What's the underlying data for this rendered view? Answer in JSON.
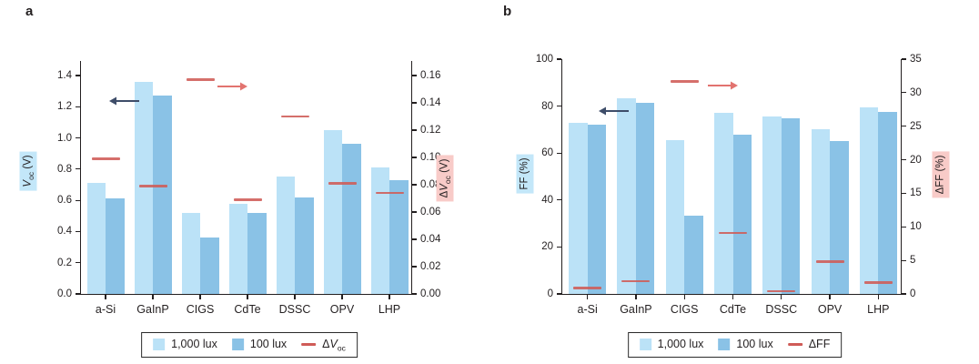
{
  "chart_data": [
    {
      "type": "bar",
      "panel_label": "a",
      "categories": [
        "a-Si",
        "GaInP",
        "CIGS",
        "CdTe",
        "DSSC",
        "OPV",
        "LHP"
      ],
      "series": [
        {
          "name": "1,000 lux",
          "color": "#bbe2f7",
          "axis": "left",
          "values": [
            0.71,
            1.36,
            0.52,
            0.58,
            0.75,
            1.05,
            0.81
          ]
        },
        {
          "name": "100 lux",
          "color": "#8ac2e6",
          "axis": "left",
          "values": [
            0.61,
            1.27,
            0.36,
            0.52,
            0.62,
            0.96,
            0.73
          ]
        }
      ],
      "delta_series": {
        "label": "ΔVoc",
        "label_parts": {
          "prefix": "Δ",
          "symbol": "V",
          "sub": "oc"
        },
        "color": "#cf5b57",
        "axis": "right",
        "values": [
          0.099,
          0.079,
          0.157,
          0.069,
          0.13,
          0.081,
          0.074
        ]
      },
      "left_axis": {
        "label": "Voc (V)",
        "label_parts": {
          "symbol": "V",
          "sub": "oc",
          "unit": " (V)"
        },
        "tick_labels": [
          "0.0",
          "0.2",
          "0.4",
          "0.6",
          "0.8",
          "1.0",
          "1.2",
          "1.4"
        ],
        "range": [
          0,
          1.4
        ],
        "highlight_color": "#c3e7f9"
      },
      "right_axis": {
        "label": "ΔVoc (V)",
        "label_parts": {
          "prefix": "Δ",
          "symbol": "V",
          "sub": "oc",
          "unit": " (V)"
        },
        "tick_labels": [
          "0.00",
          "0.02",
          "0.04",
          "0.06",
          "0.08",
          "0.10",
          "0.12",
          "0.14",
          "0.16"
        ],
        "range": [
          0,
          0.16
        ],
        "highlight_color": "#f8cbc8"
      },
      "annotation_colors": {
        "left_axis_arrow": "#3e4d69",
        "right_axis_arrow": "#e2736f"
      },
      "grid": false,
      "legend_position": "bottom",
      "legend": {
        "items": [
          {
            "marker": "swatch",
            "color": "#bbe2f7",
            "label": "1,000 lux"
          },
          {
            "marker": "swatch",
            "color": "#8ac2e6",
            "label": "100 lux"
          },
          {
            "marker": "dash",
            "color": "#cf5b57",
            "label": "ΔVoc",
            "label_parts": {
              "prefix": "Δ",
              "symbol": "V",
              "sub": "oc"
            }
          }
        ]
      }
    },
    {
      "type": "bar",
      "panel_label": "b",
      "categories": [
        "a-Si",
        "GaInP",
        "CIGS",
        "CdTe",
        "DSSC",
        "OPV",
        "LHP"
      ],
      "series": [
        {
          "name": "1,000 lux",
          "color": "#bbe2f7",
          "axis": "left",
          "values": [
            73,
            83.5,
            65.5,
            77,
            75.5,
            70,
            79.5
          ]
        },
        {
          "name": "100 lux",
          "color": "#8ac2e6",
          "axis": "left",
          "values": [
            72,
            81.5,
            33.5,
            68,
            75,
            65,
            77.5
          ]
        }
      ],
      "delta_series": {
        "label": "ΔFF",
        "label_parts": {
          "prefix": "ΔFF"
        },
        "color": "#cf5b57",
        "axis": "right",
        "values": [
          0.9,
          1.9,
          31.7,
          9.1,
          0.4,
          4.8,
          1.7
        ]
      },
      "left_axis": {
        "label": "FF (%)",
        "label_parts": {
          "prefix": "FF",
          "unit": " (%)"
        },
        "tick_labels": [
          "0",
          "20",
          "40",
          "60",
          "80",
          "100"
        ],
        "range": [
          0,
          100
        ],
        "highlight_color": "#c3e7f9"
      },
      "right_axis": {
        "label": "ΔFF (%)",
        "label_parts": {
          "prefix": "ΔFF",
          "unit": " (%)"
        },
        "tick_labels": [
          "0",
          "5",
          "10",
          "15",
          "20",
          "25",
          "30",
          "35"
        ],
        "range": [
          0,
          35
        ],
        "highlight_color": "#f8cbc8"
      },
      "annotation_colors": {
        "left_axis_arrow": "#3e4d69",
        "right_axis_arrow": "#e2736f"
      },
      "grid": false,
      "legend_position": "bottom",
      "legend": {
        "items": [
          {
            "marker": "swatch",
            "color": "#bbe2f7",
            "label": "1,000 lux"
          },
          {
            "marker": "swatch",
            "color": "#8ac2e6",
            "label": "100 lux"
          },
          {
            "marker": "dash",
            "color": "#cf5b57",
            "label": "ΔFF",
            "label_parts": {
              "prefix": "ΔFF"
            }
          }
        ]
      }
    }
  ]
}
